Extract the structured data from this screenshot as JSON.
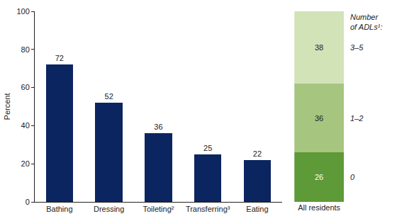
{
  "chart_data": [
    {
      "type": "bar",
      "ylabel": "Percent",
      "categories": [
        "Bathing",
        "Dressing",
        "Toileting²",
        "Transferring³",
        "Eating"
      ],
      "values": [
        72,
        52,
        36,
        25,
        22
      ],
      "color": "#0b2561",
      "ylim": [
        0,
        100
      ],
      "yticks": [
        0,
        20,
        40,
        60,
        80,
        100
      ],
      "grid": false,
      "data_labels": true
    },
    {
      "type": "bar",
      "stacked": true,
      "categories": [
        "All residents"
      ],
      "legend_title": "Number of ADLs¹:",
      "series": [
        {
          "name": "0",
          "color": "#5e9a38",
          "values": [
            26
          ]
        },
        {
          "name": "1–2",
          "color": "#a6c57f",
          "values": [
            36
          ]
        },
        {
          "name": "3–5",
          "color": "#d2e3b8",
          "values": [
            38
          ]
        }
      ],
      "ylim": [
        0,
        100
      ],
      "tick_labels": "x",
      "grid": false,
      "data_labels": true
    }
  ]
}
